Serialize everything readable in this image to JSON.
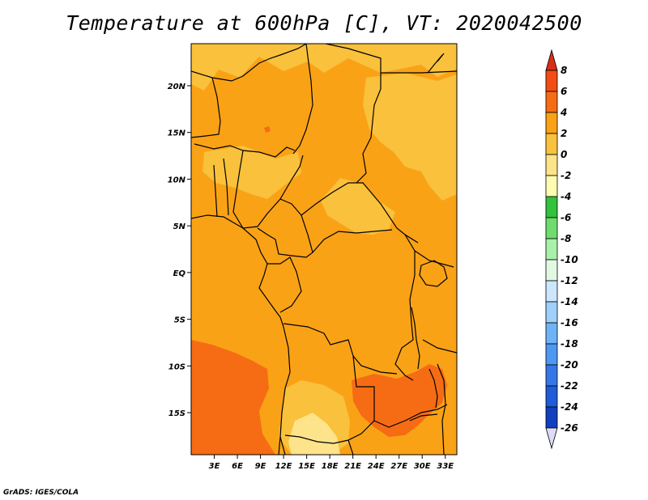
{
  "title": "Temperature at 600hPa [C], VT: 2020042500",
  "credit": "GrADS: IGES/COLA",
  "map": {
    "lon_range": [
      0,
      34.5
    ],
    "lat_range": [
      -19.5,
      24.5
    ],
    "lat_ticks": [
      {
        "value": 20,
        "label": "20N"
      },
      {
        "value": 15,
        "label": "15N"
      },
      {
        "value": 10,
        "label": "10N"
      },
      {
        "value": 5,
        "label": "5N"
      },
      {
        "value": 0,
        "label": "EQ"
      },
      {
        "value": -5,
        "label": "5S"
      },
      {
        "value": -10,
        "label": "10S"
      },
      {
        "value": -15,
        "label": "15S"
      }
    ],
    "lon_ticks": [
      {
        "value": 3,
        "label": "3E"
      },
      {
        "value": 6,
        "label": "6E"
      },
      {
        "value": 9,
        "label": "9E"
      },
      {
        "value": 12,
        "label": "12E"
      },
      {
        "value": 15,
        "label": "15E"
      },
      {
        "value": 18,
        "label": "18E"
      },
      {
        "value": 21,
        "label": "21E"
      },
      {
        "value": 24,
        "label": "24E"
      },
      {
        "value": 27,
        "label": "27E"
      },
      {
        "value": 30,
        "label": "30E"
      },
      {
        "value": 33,
        "label": "33E"
      }
    ],
    "colors": {
      "base": "#faa216",
      "warm": "#f9c13c",
      "hot": "#f66c14",
      "mild": "#fde38a",
      "border": "#000000"
    }
  },
  "colorbar": {
    "levels": [
      "8",
      "6",
      "4",
      "2",
      "0",
      "-2",
      "-4",
      "-6",
      "-8",
      "-10",
      "-12",
      "-14",
      "-16",
      "-18",
      "-20",
      "-22",
      "-24",
      "-26"
    ],
    "colors": [
      "#da2d16",
      "#f44d13",
      "#f66c14",
      "#faa216",
      "#f9c13c",
      "#fde38a",
      "#fefcb0",
      "#32c23b",
      "#6edc6e",
      "#aaf0aa",
      "#e2f8e2",
      "#cce6fc",
      "#9ed0fa",
      "#6db3f6",
      "#4d98f1",
      "#3677e8",
      "#1e5cd9",
      "#1040bf",
      "#0a1c8c",
      "#dcdcf8"
    ]
  }
}
